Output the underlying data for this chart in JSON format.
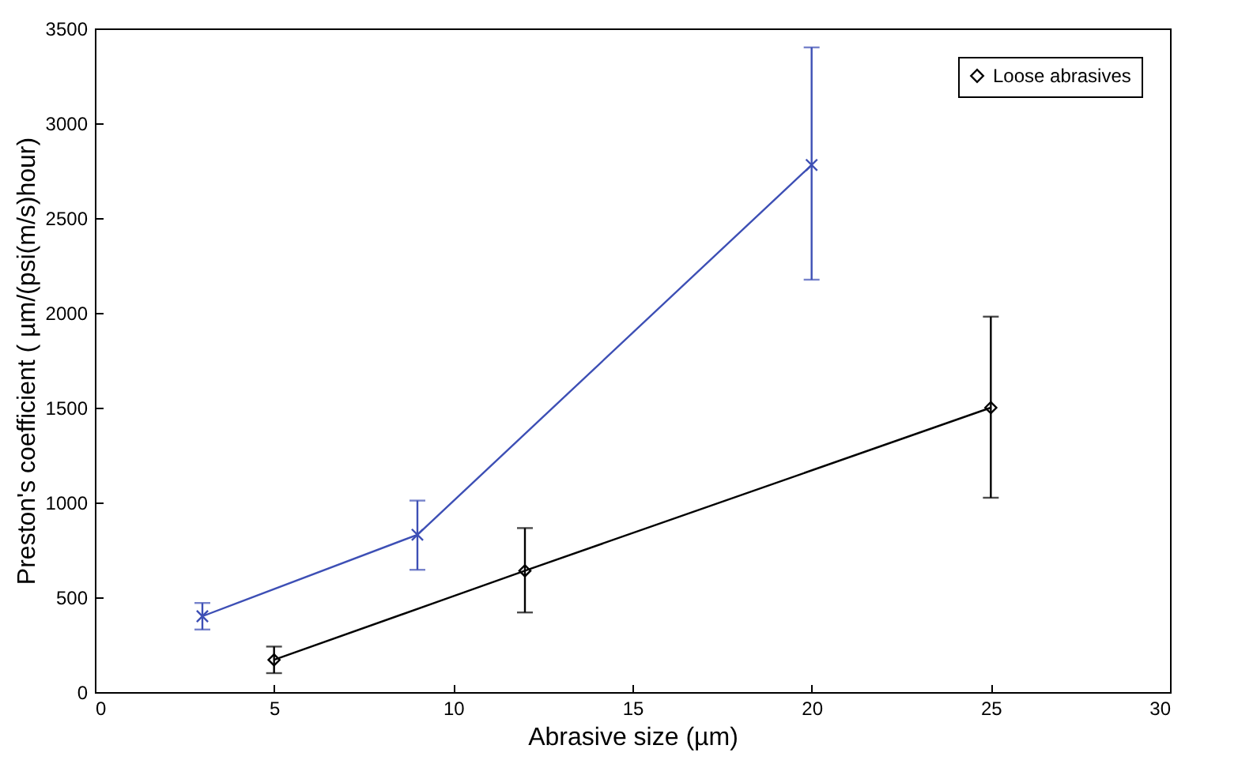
{
  "chart_data": {
    "type": "line",
    "xlabel": "Abrasive size (µm)",
    "ylabel": "Preston's coefficient ( µm/(psi(m/s)hour)",
    "xlim": [
      0,
      30
    ],
    "xticks": [
      0,
      5,
      10,
      15,
      20,
      25,
      30
    ],
    "ylim": [
      0,
      3500
    ],
    "yticks": [
      0,
      500,
      1000,
      1500,
      2000,
      2500,
      3000,
      3500
    ],
    "legend": "top right",
    "grid": false,
    "series": [
      {
        "color": "#3d4fb5",
        "marker": "cross",
        "x": [
          3,
          9,
          20
        ],
        "values": [
          400,
          830,
          2780
        ],
        "errors": [
          [
            330,
            470
          ],
          [
            645,
            1010
          ],
          [
            2175,
            3400
          ]
        ]
      },
      {
        "name": "Loose abrasives",
        "color": "#000000",
        "marker": "diamond",
        "x": [
          5,
          12,
          25
        ],
        "values": [
          170,
          640,
          1500
        ],
        "errors": [
          [
            100,
            240
          ],
          [
            420,
            865
          ],
          [
            1025,
            1980
          ]
        ]
      }
    ]
  }
}
